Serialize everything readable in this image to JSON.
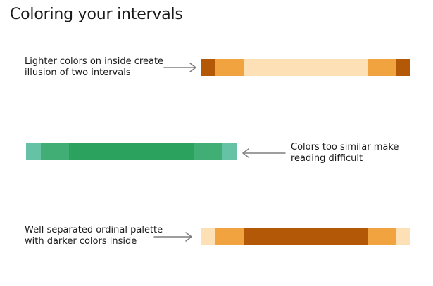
{
  "title": "Coloring your intervals",
  "examples": [
    {
      "caption": [
        "Lighter colors on inside create",
        "illusion of two intervals"
      ],
      "arrow_direction": "right",
      "segments": [
        {
          "from": 0,
          "to": 0.07,
          "color": "#b35806"
        },
        {
          "from": 0.07,
          "to": 0.205,
          "color": "#f1a340"
        },
        {
          "from": 0.205,
          "to": 0.795,
          "color": "#fee0b6"
        },
        {
          "from": 0.795,
          "to": 0.93,
          "color": "#f1a340"
        },
        {
          "from": 0.93,
          "to": 1,
          "color": "#b35806"
        }
      ]
    },
    {
      "caption": [
        "Colors too similar make",
        "reading difficult"
      ],
      "arrow_direction": "left",
      "segments": [
        {
          "from": 0,
          "to": 0.07,
          "color": "#66c2a4"
        },
        {
          "from": 0.07,
          "to": 0.205,
          "color": "#41ae76"
        },
        {
          "from": 0.205,
          "to": 0.795,
          "color": "#2ca25f"
        },
        {
          "from": 0.795,
          "to": 0.93,
          "color": "#41ae76"
        },
        {
          "from": 0.93,
          "to": 1,
          "color": "#66c2a4"
        }
      ]
    },
    {
      "caption": [
        "Well separated ordinal palette",
        "with darker colors inside"
      ],
      "arrow_direction": "right",
      "segments": [
        {
          "from": 0,
          "to": 0.07,
          "color": "#fee0b6"
        },
        {
          "from": 0.07,
          "to": 0.205,
          "color": "#f1a340"
        },
        {
          "from": 0.205,
          "to": 0.795,
          "color": "#b35806"
        },
        {
          "from": 0.795,
          "to": 0.93,
          "color": "#f1a340"
        },
        {
          "from": 0.93,
          "to": 1,
          "color": "#fee0b6"
        }
      ]
    }
  ],
  "colors": {
    "text": "#1a1a1a",
    "arrow": "#7f7f7f",
    "background": "#ffffff"
  }
}
